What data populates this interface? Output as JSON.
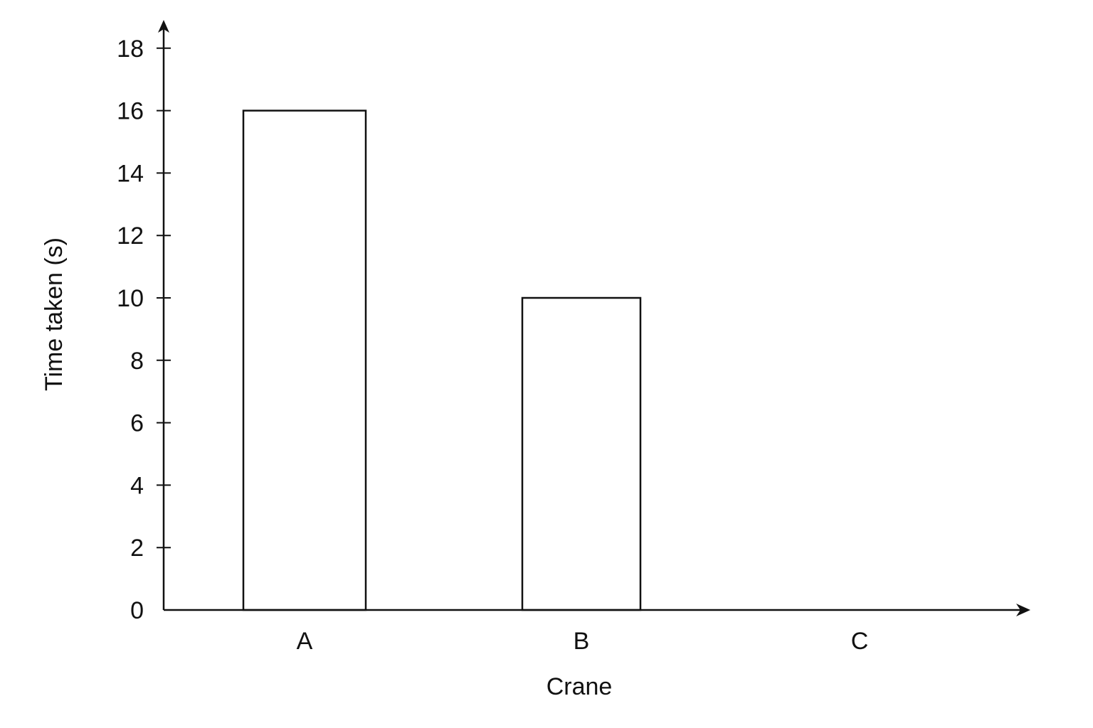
{
  "chart_data": {
    "type": "bar",
    "title": "",
    "xlabel": "Crane",
    "ylabel": "Time taken (s)",
    "categories": [
      "A",
      "B",
      "C"
    ],
    "values": [
      16,
      10,
      null
    ],
    "ylim": [
      0,
      18
    ],
    "yticks": [
      0,
      2,
      4,
      6,
      8,
      10,
      12,
      14,
      16,
      18
    ],
    "yticklabels": [
      "0",
      "2",
      "4",
      "6",
      "8",
      "10",
      "12",
      "14",
      "16",
      "18"
    ],
    "grid": false,
    "legend": "none",
    "colors": {
      "bar_fill": "#ffffff",
      "stroke": "#111111"
    }
  }
}
